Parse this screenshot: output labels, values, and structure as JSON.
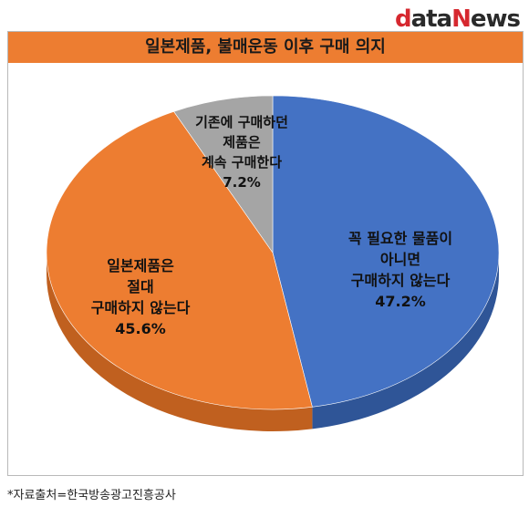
{
  "brand": {
    "d": "d",
    "ata": "ata",
    "n": "N",
    "ews": "ews"
  },
  "chart_data": {
    "type": "pie",
    "title": "일본제품, 불매운동 이후 구매 의지",
    "slices": [
      {
        "label_lines": [
          "꼭 필요한 물품이",
          "아니면",
          "구매하지 않는다"
        ],
        "value": 47.2,
        "value_label": "47.2%",
        "color": "#4472c4",
        "side": "#2f5597"
      },
      {
        "label_lines": [
          "일본제품은",
          "절대",
          "구매하지 않는다"
        ],
        "value": 45.6,
        "value_label": "45.6%",
        "color": "#ed7d31",
        "side": "#c0601f"
      },
      {
        "label_lines": [
          "기존에 구매하던",
          "제품은",
          "계속 구매한다"
        ],
        "value": 7.2,
        "value_label": "7.2%",
        "color": "#a5a5a5",
        "side": "#808080"
      }
    ]
  },
  "source": "*자료출처=한국방송광고진흥공사"
}
